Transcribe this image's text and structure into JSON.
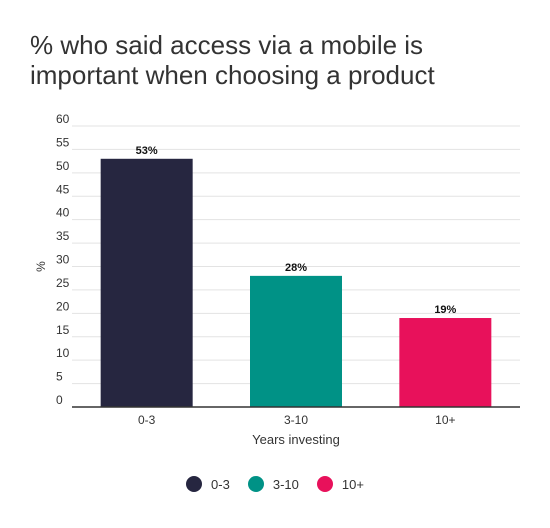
{
  "chart_data": {
    "type": "bar",
    "title": "% who said access via a mobile is important when choosing a product",
    "xlabel": "Years investing",
    "ylabel": "%",
    "categories": [
      "0-3",
      "3-10",
      "10+"
    ],
    "values": [
      53,
      28,
      19
    ],
    "data_labels": [
      "53%",
      "28%",
      "19%"
    ],
    "colors": [
      "#262640",
      "#009286",
      "#e8115b"
    ],
    "ylim": [
      0,
      60
    ],
    "yticks": [
      0,
      5,
      10,
      15,
      20,
      25,
      30,
      35,
      40,
      45,
      50,
      55,
      60
    ],
    "grid": true,
    "legend": {
      "placement": "bottom",
      "entries": [
        "0-3",
        "3-10",
        "10+"
      ]
    }
  }
}
